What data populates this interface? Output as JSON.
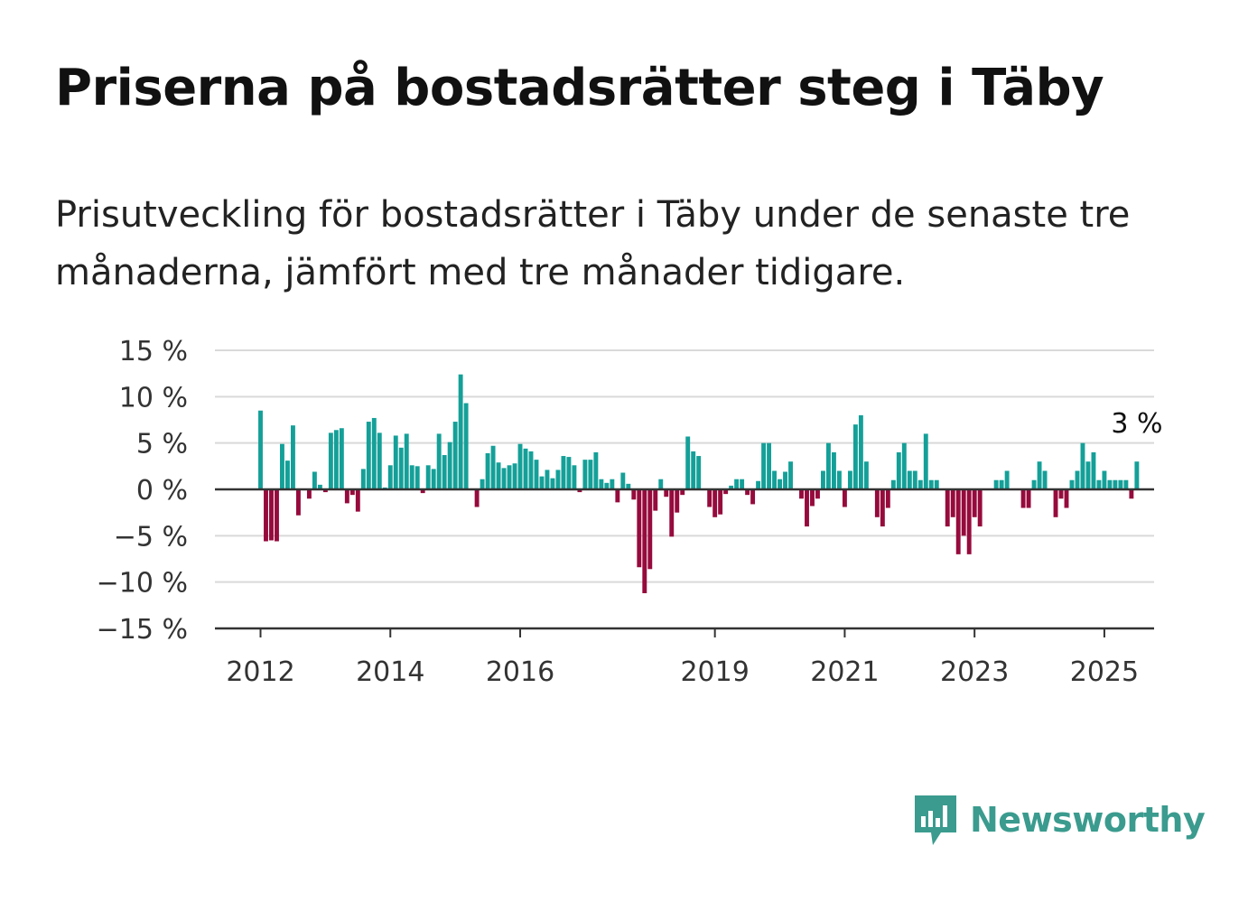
{
  "header": {
    "title": "Priserna på bostadsrätter steg i Täby",
    "subtitle": "Prisutveckling för bostadsrätter i Täby under de senaste tre månaderna, jämfört med tre månader tidigare."
  },
  "branding": {
    "name": "Newsworthy",
    "icon": "newsworthy-logo-icon",
    "color": "#3a9b8e"
  },
  "colors": {
    "positive": "#14a098",
    "negative": "#960a3c",
    "grid": "#d9d9d9",
    "axis": "#333333"
  },
  "chart_data": {
    "type": "bar",
    "title": "",
    "xlabel": "",
    "ylabel": "",
    "ylim": [
      -15,
      15
    ],
    "y_ticks": [
      {
        "value": 15,
        "label": "15 %"
      },
      {
        "value": 10,
        "label": "10 %"
      },
      {
        "value": 5,
        "label": "5 %"
      },
      {
        "value": 0,
        "label": "0 %"
      },
      {
        "value": -5,
        "label": "−5 %"
      },
      {
        "value": -10,
        "label": "−10 %"
      },
      {
        "value": -15,
        "label": "−15 %"
      }
    ],
    "x_start": "2012-01",
    "x_end": "2025-02",
    "x_ticks": [
      "2012",
      "2014",
      "2016",
      "2019",
      "2021",
      "2023",
      "2025"
    ],
    "grid": true,
    "last_value_label": "3 %",
    "values": [
      8.5,
      -5.6,
      -5.5,
      -5.6,
      4.9,
      3.1,
      6.9,
      -2.8,
      0,
      -1,
      1.9,
      0.5,
      -0.3,
      6.1,
      6.4,
      6.6,
      -1.5,
      -0.6,
      -2.4,
      2.2,
      7.3,
      7.7,
      6.1,
      0.2,
      2.6,
      5.8,
      4.5,
      6,
      2.6,
      2.5,
      -0.4,
      2.6,
      2.2,
      6,
      3.7,
      5.1,
      7.3,
      12.4,
      9.3,
      0,
      -1.9,
      1.1,
      3.9,
      4.7,
      2.9,
      2.3,
      2.6,
      2.8,
      4.9,
      4.4,
      4.1,
      3.2,
      1.4,
      2.1,
      1.2,
      2.1,
      3.6,
      3.5,
      2.6,
      -0.3,
      3.2,
      3.2,
      4,
      1.1,
      0.7,
      1.1,
      -1.4,
      1.8,
      0.6,
      -1.1,
      -8.4,
      -11.2,
      -8.6,
      -2.3,
      1.1,
      -0.8,
      -5.1,
      -2.5,
      -0.6,
      5.7,
      4.1,
      3.6,
      -0.1,
      -1.9,
      -3,
      -2.7,
      -0.5,
      0.4,
      1.1,
      1.1,
      -0.6,
      -1.6,
      0.9,
      5,
      5,
      2,
      1.1,
      1.9,
      3,
      0,
      -1,
      -4,
      -1.8,
      -1,
      2,
      5,
      4,
      2,
      -1.9,
      2,
      7,
      8,
      3,
      0,
      -3,
      -4,
      -2,
      1,
      4,
      5,
      2,
      2,
      1,
      6,
      1,
      1,
      0,
      -4,
      -3,
      -7,
      -5,
      -7,
      -3,
      -4,
      0,
      0,
      1,
      1,
      2,
      0,
      0,
      -2,
      -2,
      1,
      3,
      2,
      0,
      -3,
      -1,
      -2,
      1,
      2,
      5,
      3,
      4,
      1,
      2,
      1,
      1,
      1,
      1,
      -1,
      3
    ]
  }
}
